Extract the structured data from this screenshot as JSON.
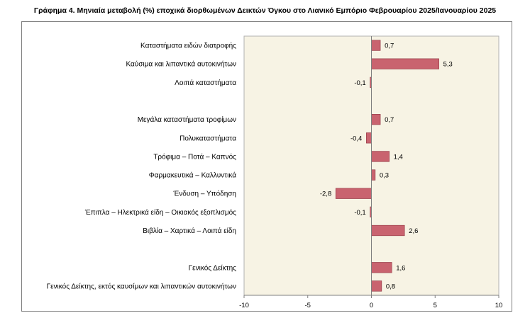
{
  "title": "Γράφημα 4. Μηνιαία μεταβολή (%) εποχικά διορθωμένων Δεικτών Όγκου στο Λιανικό Εμπόριο Φεβρουαρίου 2025/Ιανουαρίου 2025",
  "chart_data": {
    "type": "bar",
    "orientation": "horizontal",
    "title": "Γράφημα 4. Μηνιαία μεταβολή (%) εποχικά διορθωμένων Δεικτών Όγκου στο Λιανικό Εμπόριο Φεβρουαρίου 2025/Ιανουαρίου 2025",
    "categories": [
      "Καταστήματα ειδών διατροφής",
      "Καύσιμα και λιπαντικά αυτοκινήτων",
      "Λοιπά καταστήματα",
      "",
      "Μεγάλα καταστήματα τροφίμων",
      "Πολυκαταστήματα",
      "Τρόφιμα – Ποτά – Καπνός",
      "Φαρμακευτικά – Καλλυντικά",
      "Ένδυση – Υπόδηση",
      "Έπιπλα – Ηλεκτρικά είδη – Οικιακός εξοπλισμός",
      "Βιβλία – Χαρτικά – Λοιπά είδη",
      "",
      "Γενικός Δείκτης",
      "Γενικός Δείκτης, εκτός καυσίμων και λιπαντικών αυτοκινήτων"
    ],
    "values": [
      0.7,
      5.3,
      -0.1,
      null,
      0.7,
      -0.4,
      1.4,
      0.3,
      -2.8,
      -0.1,
      2.6,
      null,
      1.6,
      0.8
    ],
    "data_labels": [
      "0,7",
      "5,3",
      "-0,1",
      "",
      "0,7",
      "-0,4",
      "1,4",
      "0,3",
      "-2,8",
      "-0,1",
      "2,6",
      "",
      "1,6",
      "0,8"
    ],
    "xlim": [
      -10,
      10
    ],
    "xticks": [
      -10,
      -5,
      0,
      5,
      10
    ],
    "xtick_labels": [
      "-10",
      "-5",
      "0",
      "5",
      "10"
    ],
    "grid": false,
    "legend": "none",
    "colors": {
      "bar_fill": "#c9636f",
      "bar_edge": "#8f3340",
      "plot_background": "#f7f3e4",
      "plot_border": "#b2b2b2",
      "axis": "#7f7f7f"
    }
  }
}
